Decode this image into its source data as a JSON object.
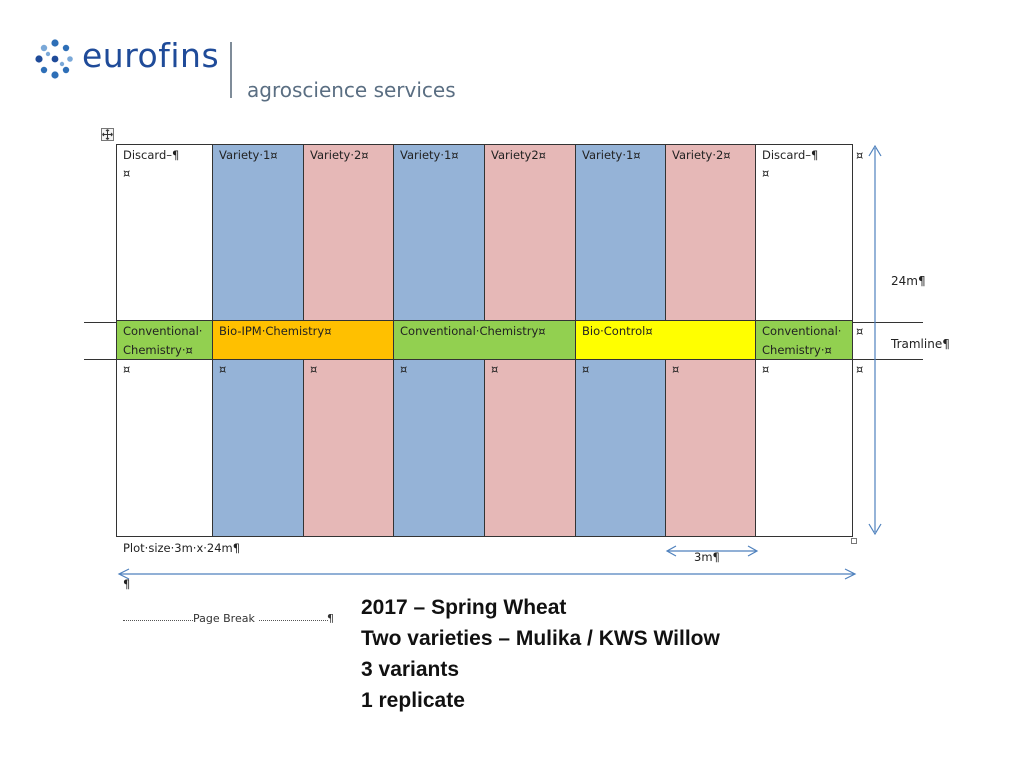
{
  "logo": {
    "brand": "eurofins",
    "subtitle": "agroscience services",
    "colors": {
      "brand": "#1f4b99",
      "dots": "#2e6fb7",
      "subtitle": "#5a6e82"
    }
  },
  "plot": {
    "columns": [
      {
        "top_label": "Discard–¶",
        "top_mark": "¤",
        "bottom_mark": "¤",
        "color": "#ffffff"
      },
      {
        "top_label": "Variety·1¤",
        "bottom_mark": "¤",
        "color": "#95b3d7"
      },
      {
        "top_label": "Variety·2¤",
        "bottom_mark": "¤",
        "color": "#e6b8b7"
      },
      {
        "top_label": "Variety·1¤",
        "bottom_mark": "¤",
        "color": "#95b3d7"
      },
      {
        "top_label": "Variety2¤",
        "bottom_mark": "¤",
        "color": "#e6b8b7"
      },
      {
        "top_label": "Variety·1¤",
        "bottom_mark": "¤",
        "color": "#95b3d7"
      },
      {
        "top_label": "Variety·2¤",
        "bottom_mark": "¤",
        "color": "#e6b8b7"
      },
      {
        "top_label": "Discard–¶",
        "top_mark": "¤",
        "bottom_mark": "¤",
        "color": "#ffffff"
      }
    ],
    "treatments": [
      {
        "line1": "Conventional·",
        "line2": "Chemistry·¤",
        "color": "#92d050"
      },
      {
        "line1": "Bio-IPM·Chemistry¤",
        "color": "#ffc000"
      },
      {
        "line1": "Conventional·Chemistry¤",
        "color": "#92d050"
      },
      {
        "line1": "Bio·Control¤",
        "color": "#ffff00"
      },
      {
        "line1": "Conventional·",
        "line2": "Chemistry·¤",
        "color": "#92d050"
      }
    ],
    "row_end_marks": [
      "¤",
      "¤",
      "¤"
    ],
    "height_label": "24m¶",
    "tramline_label": "Tramline¶",
    "width_label": "3m¶",
    "plot_size_label": "Plot·size·3m·x·24m¶",
    "paragraph_mark": "¶",
    "page_break_label": "Page Break",
    "arrow_color": "#4f81bd"
  },
  "summary": {
    "lines": [
      "2017 – Spring Wheat",
      "Two varieties – Mulika / KWS Willow",
      "3 variants",
      "1 replicate"
    ]
  }
}
